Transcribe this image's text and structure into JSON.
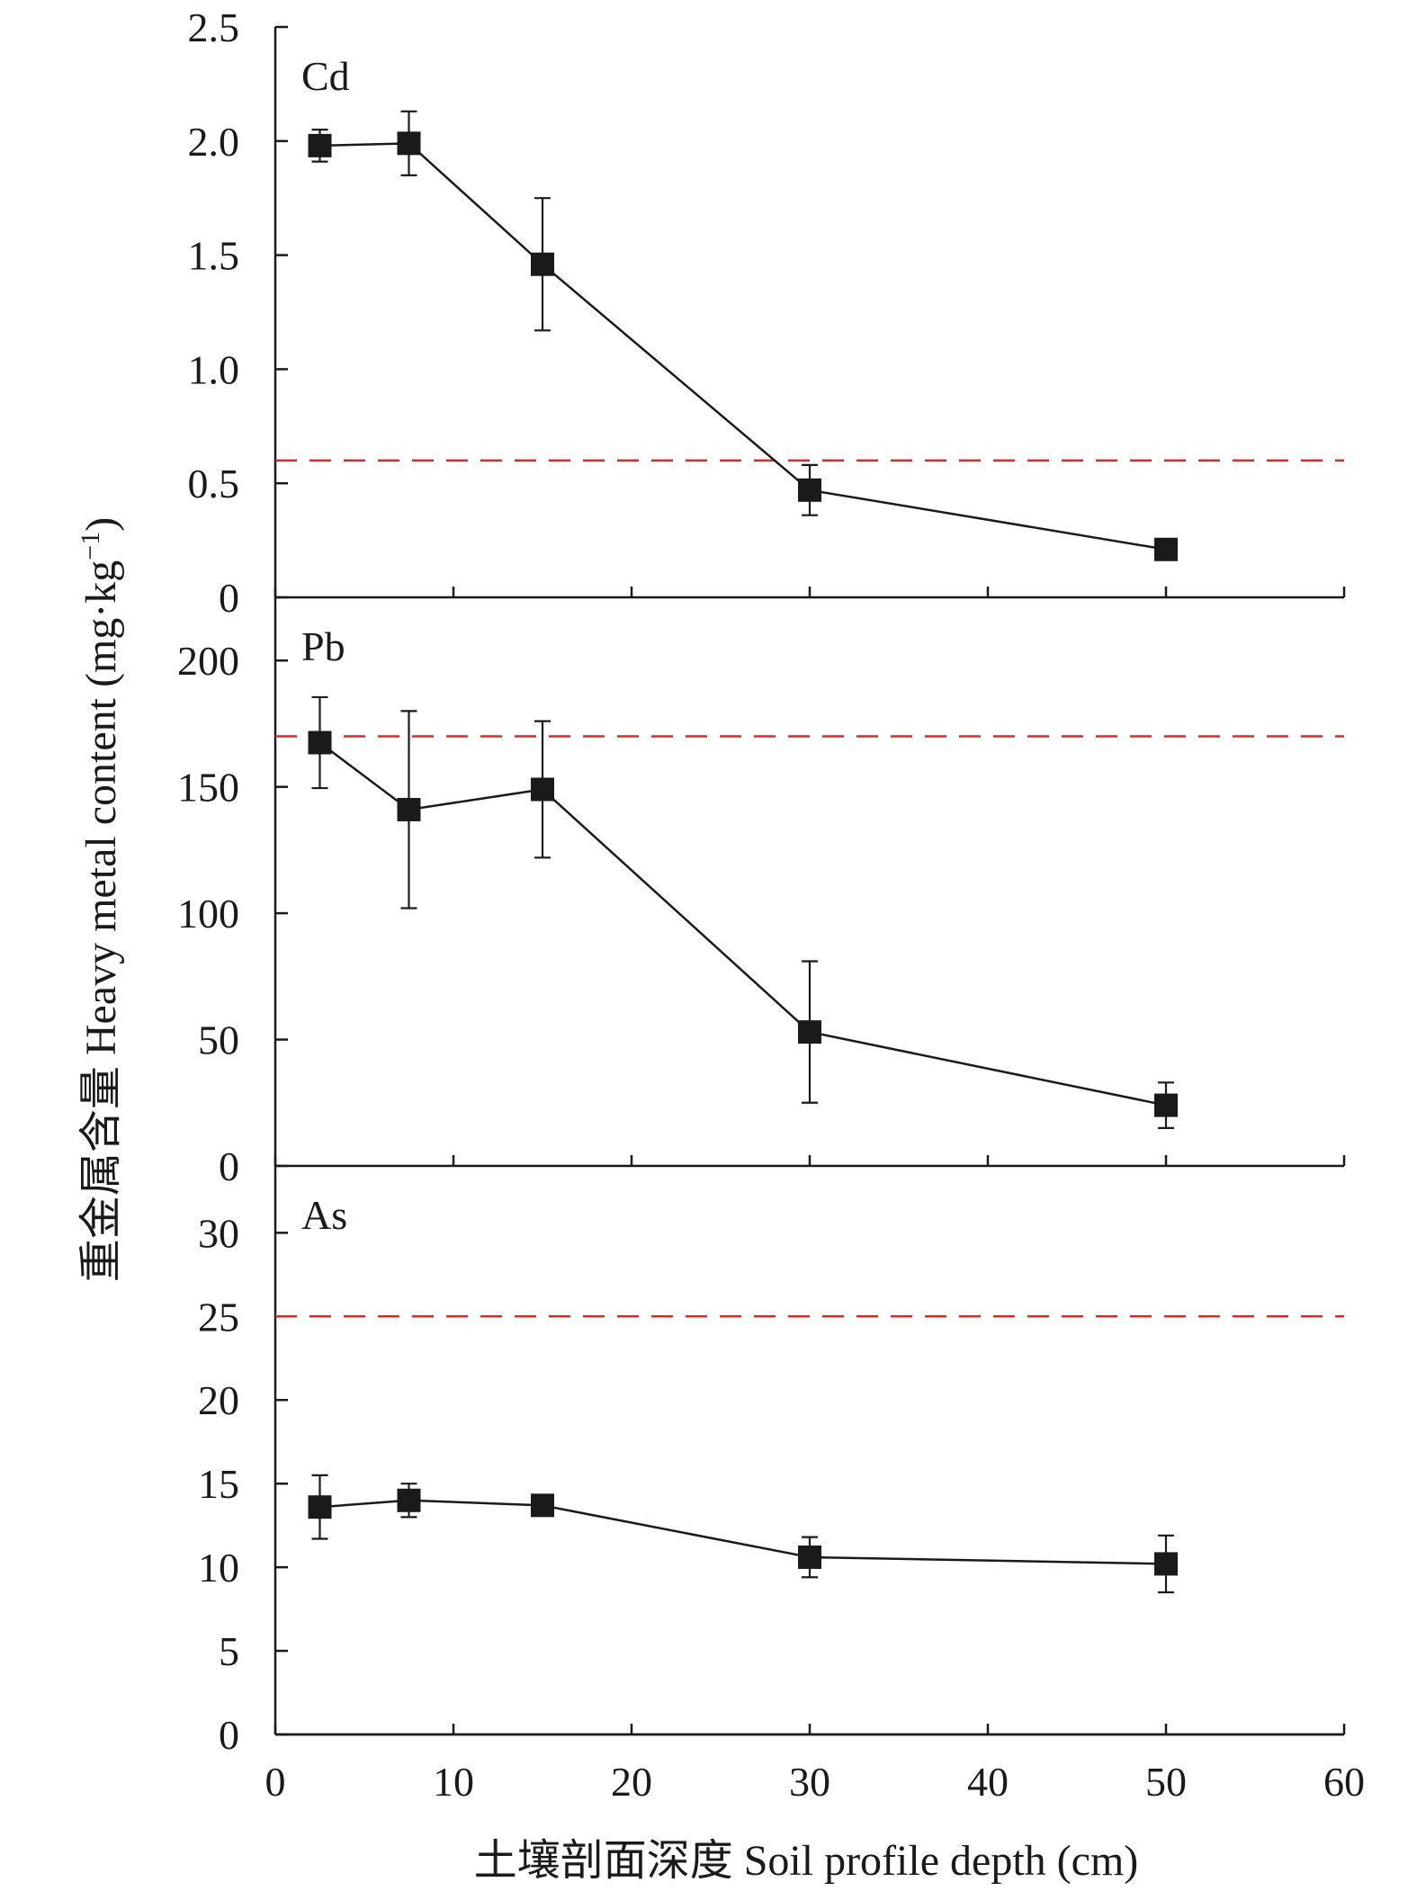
{
  "chart_data": [
    {
      "type": "line",
      "panel_label": "Cd",
      "x": [
        2.5,
        7.5,
        15,
        30,
        50
      ],
      "values": [
        1.98,
        1.99,
        1.46,
        0.47,
        0.21
      ],
      "error": [
        0.07,
        0.14,
        0.29,
        0.11,
        0.03
      ],
      "threshold": 0.6,
      "ylim": [
        0,
        2.5
      ],
      "yticks": [
        "0",
        "0.5",
        "1.0",
        "1.5",
        "2.0",
        "2.5"
      ],
      "ytick_values": [
        0,
        0.5,
        1.0,
        1.5,
        2.0,
        2.5
      ]
    },
    {
      "type": "line",
      "panel_label": "Pb",
      "x": [
        2.5,
        7.5,
        15,
        30,
        50
      ],
      "values": [
        167.5,
        141,
        149,
        53,
        24
      ],
      "error": [
        18,
        39,
        27,
        28,
        9
      ],
      "threshold": 170,
      "ylim": [
        0,
        225
      ],
      "yticks": [
        "0",
        "50",
        "100",
        "150",
        "200"
      ],
      "ytick_values": [
        0,
        50,
        100,
        150,
        200
      ]
    },
    {
      "type": "line",
      "panel_label": "As",
      "x": [
        2.5,
        7.5,
        15,
        30,
        50
      ],
      "values": [
        13.6,
        14.0,
        13.7,
        10.6,
        10.2
      ],
      "error": [
        1.9,
        1.0,
        0.5,
        1.2,
        1.7
      ],
      "threshold": 25,
      "ylim": [
        0,
        34
      ],
      "yticks": [
        "0",
        "5",
        "10",
        "15",
        "20",
        "25",
        "30"
      ],
      "ytick_values": [
        0,
        5,
        10,
        15,
        20,
        25,
        30
      ]
    }
  ],
  "xaxis": {
    "ticks": [
      "0",
      "10",
      "20",
      "30",
      "40",
      "50",
      "60"
    ],
    "tick_values": [
      0,
      10,
      20,
      30,
      40,
      50,
      60
    ],
    "xlim": [
      0,
      60
    ],
    "label": "土壤剖面深度 Soil profile depth (cm)"
  },
  "yaxis": {
    "label_main": "重金属含量 Heavy metal content (mg·kg",
    "label_sup": "−1",
    "label_end": ")"
  },
  "colors": {
    "line": "#1a1a1a",
    "marker": "#1a1a1a",
    "threshold": "#d62b2b"
  },
  "marker": "square",
  "grid": false
}
